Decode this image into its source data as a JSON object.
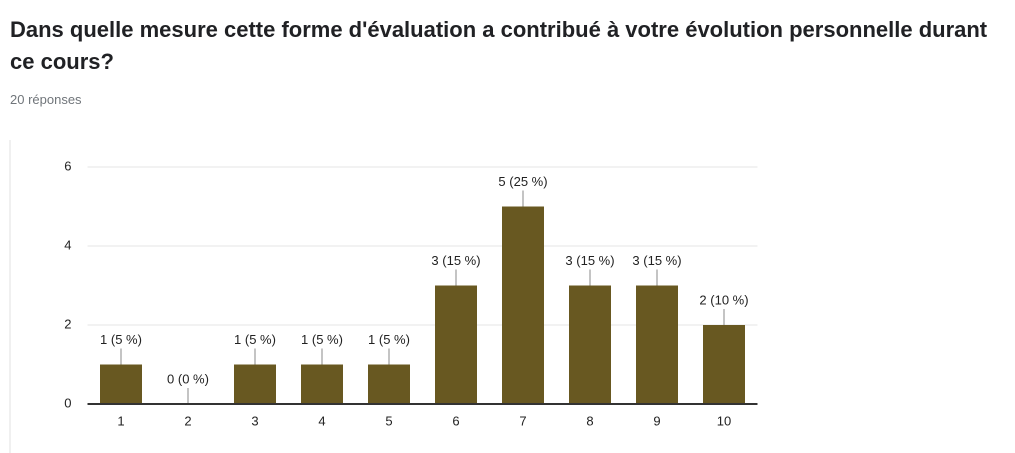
{
  "chart_data": {
    "type": "bar",
    "title": "Dans quelle mesure cette forme d'évaluation a contribué à votre évolution personnelle durant ce cours?",
    "subtitle": "20 réponses",
    "categories": [
      "1",
      "2",
      "3",
      "4",
      "5",
      "6",
      "7",
      "8",
      "9",
      "10"
    ],
    "values": [
      1,
      0,
      1,
      1,
      1,
      3,
      5,
      3,
      3,
      2
    ],
    "value_labels": [
      "1 (5 %)",
      "0 (0 %)",
      "1 (5 %)",
      "1 (5 %)",
      "1 (5 %)",
      "3 (15 %)",
      "5 (25 %)",
      "3 (15 %)",
      "3 (15 %)",
      "2 (10 %)"
    ],
    "color": "#685821",
    "ylim": [
      0,
      6
    ],
    "yticks": [
      0,
      2,
      4,
      6
    ],
    "grid": true
  }
}
